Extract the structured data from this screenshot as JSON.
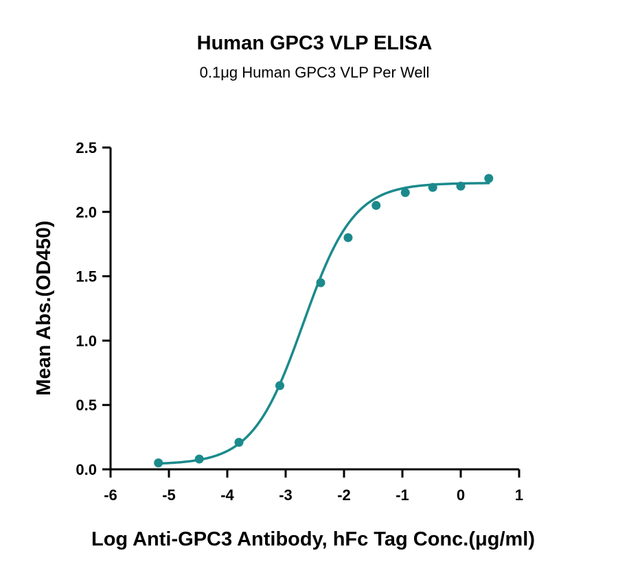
{
  "chart_data": {
    "type": "scatter",
    "title": "Human GPC3 VLP ELISA",
    "subtitle": "0.1μg Human GPC3 VLP Per Well",
    "xlabel": "Log Anti-GPC3 Antibody, hFc Tag Conc.(μg/ml)",
    "ylabel": "Mean Abs.(OD450)",
    "xlim": [
      -6,
      1
    ],
    "ylim": [
      0,
      2.5
    ],
    "x_ticks": [
      -6,
      -5,
      -4,
      -3,
      -2,
      -1,
      0,
      1
    ],
    "x_tick_labels": [
      "-6",
      "-5",
      "-4",
      "-3",
      "-2",
      "-1",
      "0",
      "1"
    ],
    "y_ticks": [
      0,
      0.5,
      1.0,
      1.5,
      2.0,
      2.5
    ],
    "y_tick_labels": [
      "0.0",
      "0.5",
      "1.0",
      "1.5",
      "2.0",
      "2.5"
    ],
    "grid": false,
    "legend": "none",
    "series": [
      {
        "color": "#1b8a8c",
        "points": [
          {
            "x": -5.18,
            "y": 0.05
          },
          {
            "x": -4.48,
            "y": 0.08
          },
          {
            "x": -3.8,
            "y": 0.21
          },
          {
            "x": -3.1,
            "y": 0.65
          },
          {
            "x": -2.4,
            "y": 1.45
          },
          {
            "x": -1.93,
            "y": 1.8
          },
          {
            "x": -1.45,
            "y": 2.05
          },
          {
            "x": -0.95,
            "y": 2.15
          },
          {
            "x": -0.48,
            "y": 2.19
          },
          {
            "x": 0.0,
            "y": 2.2
          },
          {
            "x": 0.48,
            "y": 2.26
          }
        ],
        "fit": {
          "model": "4PL",
          "bottom": 0.038,
          "top": 2.225,
          "log_ec50": -2.7,
          "hill_slope": 1.0,
          "x_range": [
            -5.18,
            0.48
          ]
        }
      }
    ]
  }
}
